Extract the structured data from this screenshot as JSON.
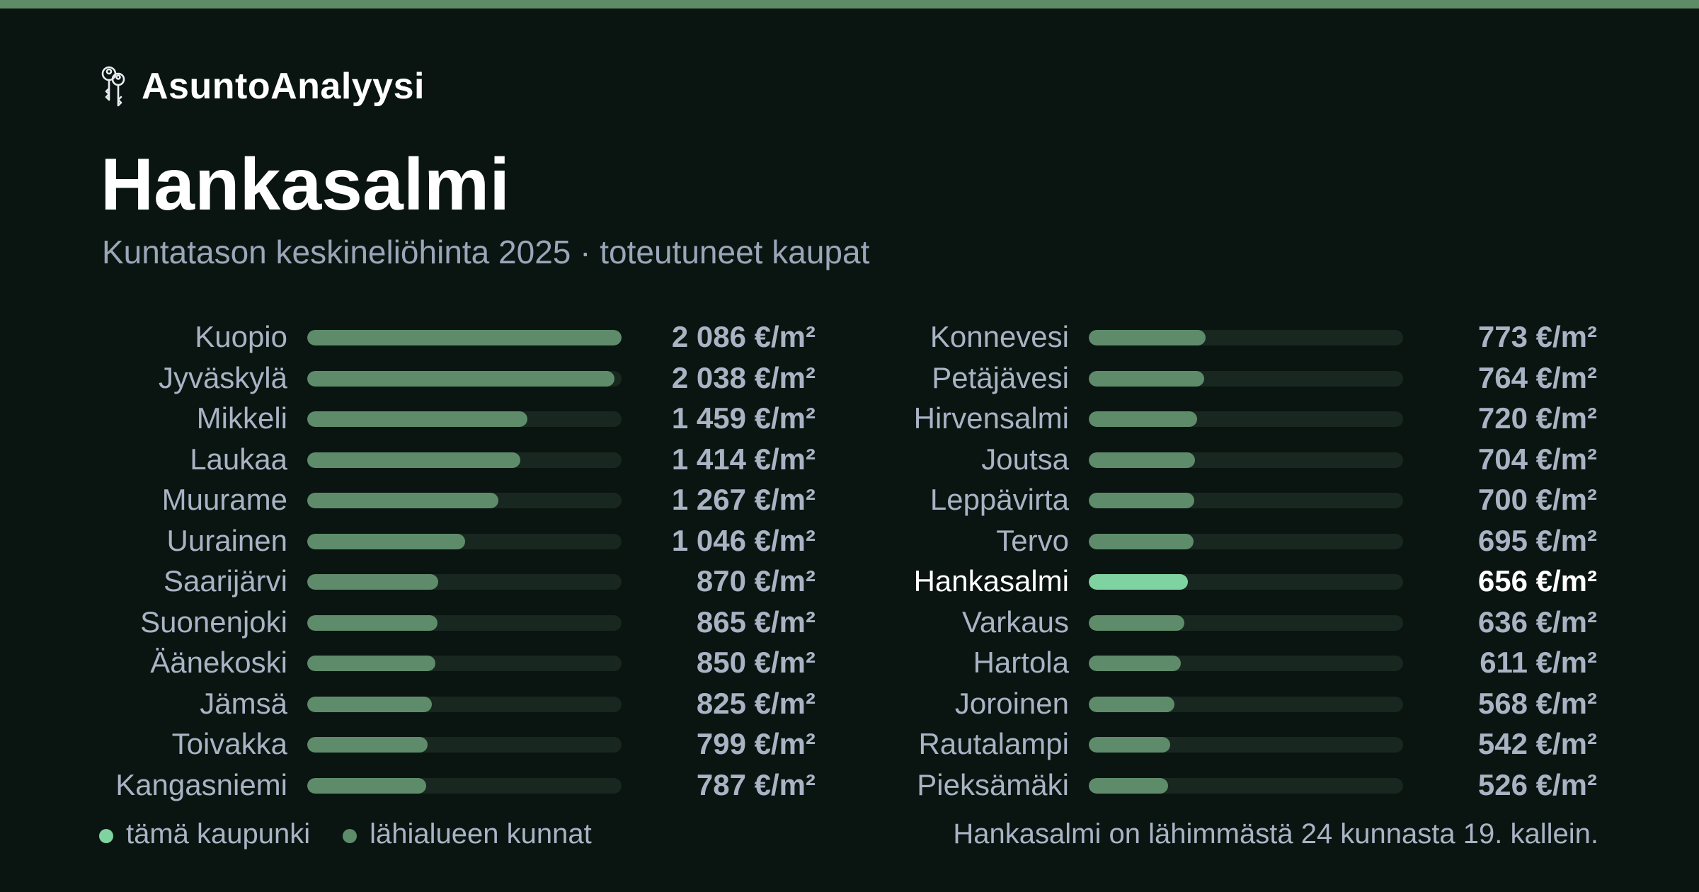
{
  "brand": {
    "name": "AsuntoAnalyysi",
    "icon": "keys-icon"
  },
  "title": "Hankasalmi",
  "subtitle": "Kuntatason keskineliöhinta 2025 · toteutuneet kaupat",
  "legend": [
    {
      "label": "tämä kaupunki",
      "color": "#7fd3a0"
    },
    {
      "label": "lähialueen kunnat",
      "color": "#5e8c6a"
    }
  ],
  "footnote": "Hankasalmi on lähimmästä 24 kunnasta 19. kallein.",
  "colors": {
    "accent": "#7fd3a0",
    "bar": "#5e8c6a",
    "track": "#18271f",
    "background": "#0a1512",
    "stripe": "#5e8c67"
  },
  "chart_data": {
    "type": "bar",
    "orientation": "horizontal",
    "unit": "€/m²",
    "highlight": "Hankasalmi",
    "xlim": [
      0,
      2086
    ],
    "rows": [
      {
        "name": "Kuopio",
        "value": 2086,
        "label": "2 086 €/m²"
      },
      {
        "name": "Jyväskylä",
        "value": 2038,
        "label": "2 038 €/m²"
      },
      {
        "name": "Mikkeli",
        "value": 1459,
        "label": "1 459 €/m²"
      },
      {
        "name": "Laukaa",
        "value": 1414,
        "label": "1 414 €/m²"
      },
      {
        "name": "Muurame",
        "value": 1267,
        "label": "1 267 €/m²"
      },
      {
        "name": "Uurainen",
        "value": 1046,
        "label": "1 046 €/m²"
      },
      {
        "name": "Saarijärvi",
        "value": 870,
        "label": "870 €/m²"
      },
      {
        "name": "Suonenjoki",
        "value": 865,
        "label": "865 €/m²"
      },
      {
        "name": "Äänekoski",
        "value": 850,
        "label": "850 €/m²"
      },
      {
        "name": "Jämsä",
        "value": 825,
        "label": "825 €/m²"
      },
      {
        "name": "Toivakka",
        "value": 799,
        "label": "799 €/m²"
      },
      {
        "name": "Kangasniemi",
        "value": 787,
        "label": "787 €/m²"
      },
      {
        "name": "Konnevesi",
        "value": 773,
        "label": "773 €/m²"
      },
      {
        "name": "Petäjävesi",
        "value": 764,
        "label": "764 €/m²"
      },
      {
        "name": "Hirvensalmi",
        "value": 720,
        "label": "720 €/m²"
      },
      {
        "name": "Joutsa",
        "value": 704,
        "label": "704 €/m²"
      },
      {
        "name": "Leppävirta",
        "value": 700,
        "label": "700 €/m²"
      },
      {
        "name": "Tervo",
        "value": 695,
        "label": "695 €/m²"
      },
      {
        "name": "Hankasalmi",
        "value": 656,
        "label": "656 €/m²"
      },
      {
        "name": "Varkaus",
        "value": 636,
        "label": "636 €/m²"
      },
      {
        "name": "Hartola",
        "value": 611,
        "label": "611 €/m²"
      },
      {
        "name": "Joroinen",
        "value": 568,
        "label": "568 €/m²"
      },
      {
        "name": "Rautalampi",
        "value": 542,
        "label": "542 €/m²"
      },
      {
        "name": "Pieksämäki",
        "value": 526,
        "label": "526 €/m²"
      }
    ]
  }
}
